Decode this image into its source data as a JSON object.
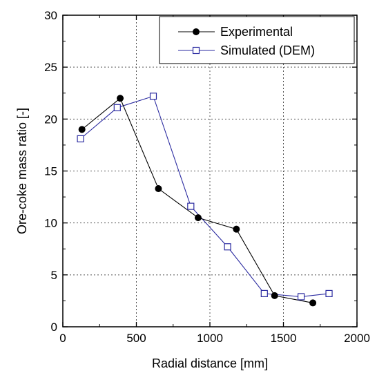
{
  "chart_data": {
    "type": "line",
    "title": "",
    "xlabel": "Radial distance  [mm]",
    "ylabel": "Ore-coke mass ratio  [-]",
    "xlim": [
      0,
      2000
    ],
    "ylim": [
      0,
      30
    ],
    "xticks": [
      0,
      500,
      1000,
      1500,
      2000
    ],
    "yticks": [
      0,
      5,
      10,
      15,
      20,
      25,
      30
    ],
    "xtick_labels": [
      "0",
      "500",
      "1000",
      "1500",
      "2000"
    ],
    "ytick_labels": [
      "0",
      "5",
      "10",
      "15",
      "20",
      "25",
      "30"
    ],
    "grid": true,
    "legend_position": "top-right",
    "series": [
      {
        "name": "Experimental",
        "marker": "filled-circle",
        "color": "#000000",
        "x": [
          130,
          390,
          650,
          920,
          1180,
          1440,
          1700
        ],
        "y": [
          19.0,
          22.0,
          13.3,
          10.5,
          9.4,
          3.0,
          2.3
        ]
      },
      {
        "name": "Simulated (DEM)",
        "marker": "open-square",
        "color": "#2a2aa0",
        "x": [
          120,
          370,
          615,
          870,
          1120,
          1370,
          1620,
          1810
        ],
        "y": [
          18.1,
          21.1,
          22.2,
          11.6,
          7.7,
          3.2,
          2.9,
          3.2
        ]
      }
    ]
  }
}
